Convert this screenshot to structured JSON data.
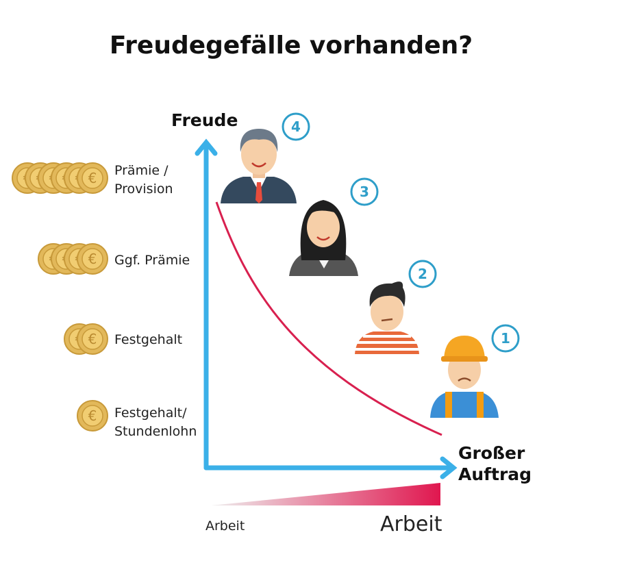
{
  "title": "Freudegefälle vorhanden?",
  "y_axis": {
    "label": "Freude"
  },
  "x_axis": {
    "label_lines": [
      "Großer",
      "Auftrag"
    ]
  },
  "levels": [
    {
      "label_lines": [
        "Prämie /",
        "Provision"
      ]
    },
    {
      "label_lines": [
        "Ggf. Prämie"
      ]
    },
    {
      "label_lines": [
        "Festgehalt"
      ]
    },
    {
      "label_lines": [
        "Festgehalt/",
        "Stundenlohn"
      ]
    }
  ],
  "persons": [
    {
      "number": "4"
    },
    {
      "number": "3"
    },
    {
      "number": "2"
    },
    {
      "number": "1"
    }
  ],
  "effort": {
    "low_label": "Arbeit",
    "high_label": "Arbeit"
  }
}
